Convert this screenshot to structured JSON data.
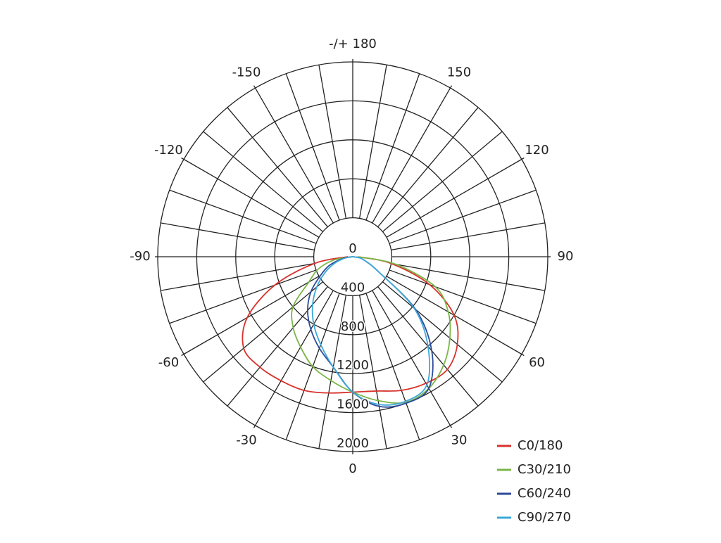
{
  "chart_data": {
    "type": "polar",
    "x": [
      -90,
      -80,
      -70,
      -60,
      -50,
      -40,
      -30,
      -20,
      -10,
      0,
      10,
      20,
      30,
      40,
      50,
      60,
      70,
      80,
      90
    ],
    "series": [
      {
        "name": "C0/180",
        "color": "#d8322c",
        "values": [
          50,
          400,
          850,
          1250,
          1460,
          1480,
          1470,
          1460,
          1420,
          1390,
          1400,
          1460,
          1500,
          1510,
          1400,
          1200,
          840,
          400,
          50
        ]
      },
      {
        "name": "C30/210",
        "color": "#7ab648",
        "values": [
          0,
          200,
          380,
          520,
          800,
          950,
          1070,
          1200,
          1290,
          1390,
          1500,
          1590,
          1560,
          1450,
          1300,
          1130,
          900,
          450,
          50
        ]
      },
      {
        "name": "C60/240",
        "color": "#2d4a9a",
        "values": [
          0,
          100,
          250,
          380,
          560,
          720,
          860,
          1000,
          1150,
          1390,
          1560,
          1600,
          1560,
          1260,
          840,
          300,
          150,
          80,
          0
        ]
      },
      {
        "name": "C90/270",
        "color": "#3ca8d8",
        "values": [
          0,
          80,
          200,
          330,
          480,
          640,
          800,
          960,
          1150,
          1390,
          1540,
          1580,
          1520,
          1200,
          820,
          300,
          150,
          80,
          0
        ]
      }
    ],
    "rlim": [
      0,
      2000
    ],
    "rticks": [
      0,
      400,
      800,
      1200,
      1600,
      2000
    ],
    "thetaticks": [
      0,
      30,
      60,
      90,
      120,
      150,
      {
        "value": 180,
        "label": "-/+ 180"
      },
      -150,
      -120,
      -90,
      -60,
      -30
    ],
    "legend": "lower right"
  }
}
